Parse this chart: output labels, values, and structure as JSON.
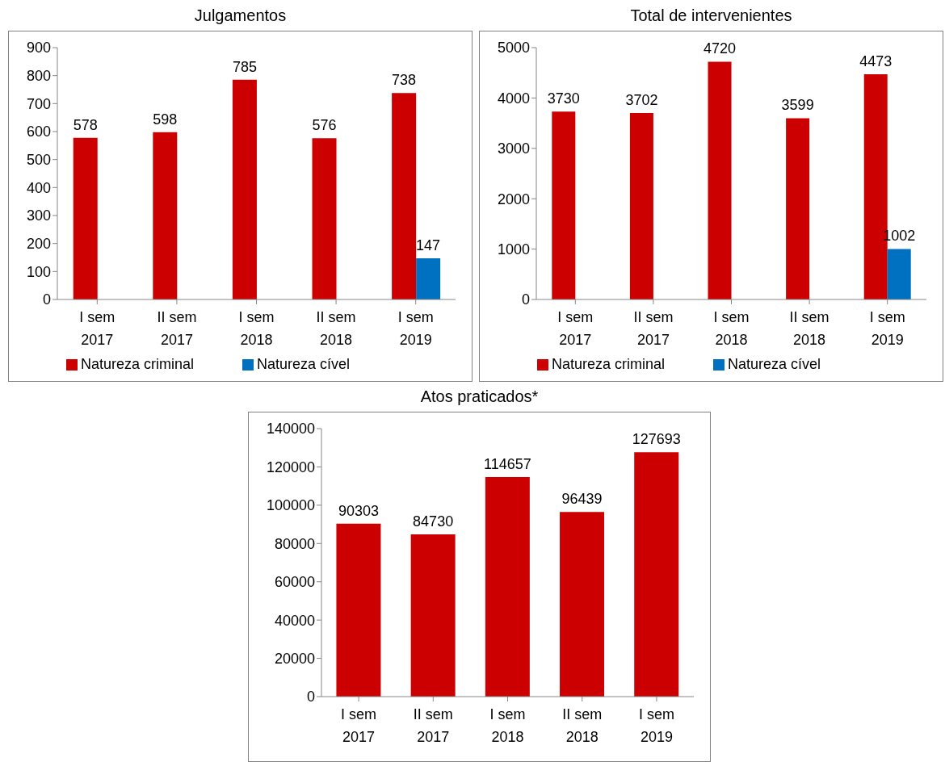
{
  "chart_data": [
    {
      "type": "bar",
      "title": "Julgamentos",
      "categories": [
        "I sem 2017",
        "II sem 2017",
        "I sem 2018",
        "II sem 2018",
        "I sem 2019"
      ],
      "series": [
        {
          "name": "Natureza criminal",
          "color": "#cc0000",
          "values": [
            578,
            598,
            785,
            576,
            738
          ]
        },
        {
          "name": "Natureza cível",
          "color": "#0070c0",
          "values": [
            null,
            null,
            null,
            null,
            147
          ]
        }
      ],
      "ylim": [
        0,
        900
      ],
      "yticks": [
        0,
        100,
        200,
        300,
        400,
        500,
        600,
        700,
        800,
        900
      ],
      "grid": false,
      "legend": "bottom",
      "data_labels": true
    },
    {
      "type": "bar",
      "title": "Total de intervenientes",
      "categories": [
        "I sem 2017",
        "II sem 2017",
        "I sem 2018",
        "II sem 2018",
        "I sem 2019"
      ],
      "series": [
        {
          "name": "Natureza criminal",
          "color": "#cc0000",
          "values": [
            3730,
            3702,
            4720,
            3599,
            4473
          ]
        },
        {
          "name": "Natureza cível",
          "color": "#0070c0",
          "values": [
            null,
            null,
            null,
            null,
            1002
          ]
        }
      ],
      "ylim": [
        0,
        5000
      ],
      "yticks": [
        0,
        1000,
        2000,
        3000,
        4000,
        5000
      ],
      "grid": false,
      "legend": "bottom",
      "data_labels": true
    },
    {
      "type": "bar",
      "title": "Atos praticados*",
      "categories": [
        "I sem 2017",
        "II sem 2017",
        "I sem 2018",
        "II sem 2018",
        "I sem 2019"
      ],
      "series": [
        {
          "color": "#cc0000",
          "values": [
            90303,
            84730,
            114657,
            96439,
            127693
          ]
        }
      ],
      "ylim": [
        0,
        140000
      ],
      "yticks": [
        0,
        20000,
        40000,
        60000,
        80000,
        100000,
        120000,
        140000
      ],
      "grid": false,
      "data_labels": true
    }
  ]
}
